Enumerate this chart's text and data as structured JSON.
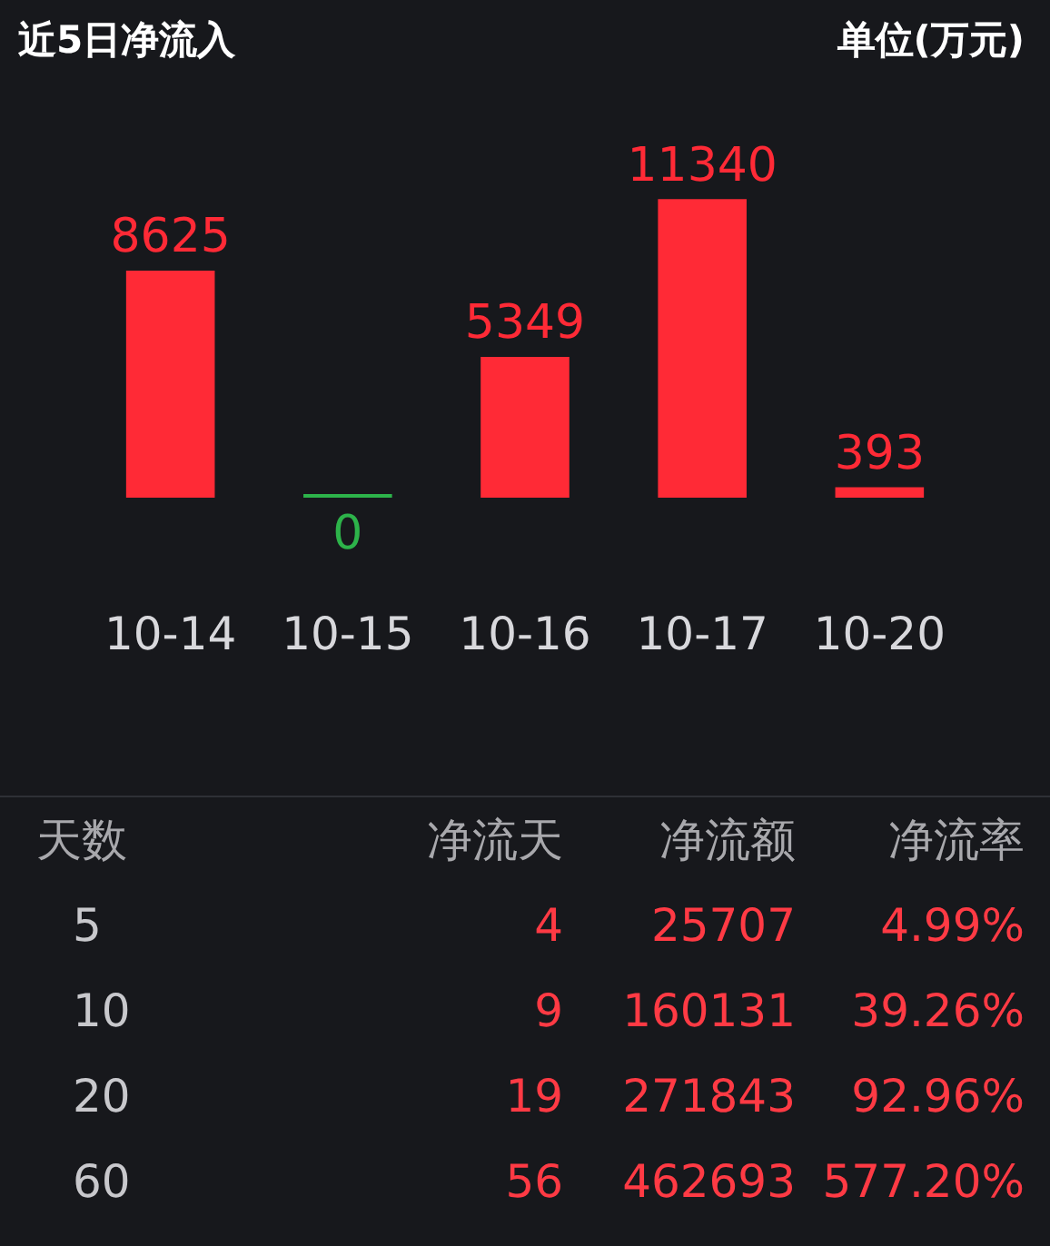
{
  "chart_data": [
    {
      "type": "bar",
      "title": "近5日净流入",
      "subtitle": "单位(万元)",
      "categories": [
        "10-14",
        "10-15",
        "10-16",
        "10-17",
        "10-20"
      ],
      "values": [
        8625,
        0,
        5349,
        11340,
        393
      ],
      "colors": [
        "#ff2a36",
        "#2db34a",
        "#ff2a36",
        "#ff2a36",
        "#ff2a36"
      ],
      "data_labels": true
    },
    {
      "type": "other",
      "annotations": [
        "天数",
        "净流天",
        "净流额",
        "净流率",
        "5",
        "4",
        "25707",
        "4.99%",
        "10",
        "9",
        "160131",
        "39.26%",
        "20",
        "19",
        "271843",
        "92.96%",
        "60",
        "56",
        "462693",
        "577.20%"
      ]
    }
  ]
}
